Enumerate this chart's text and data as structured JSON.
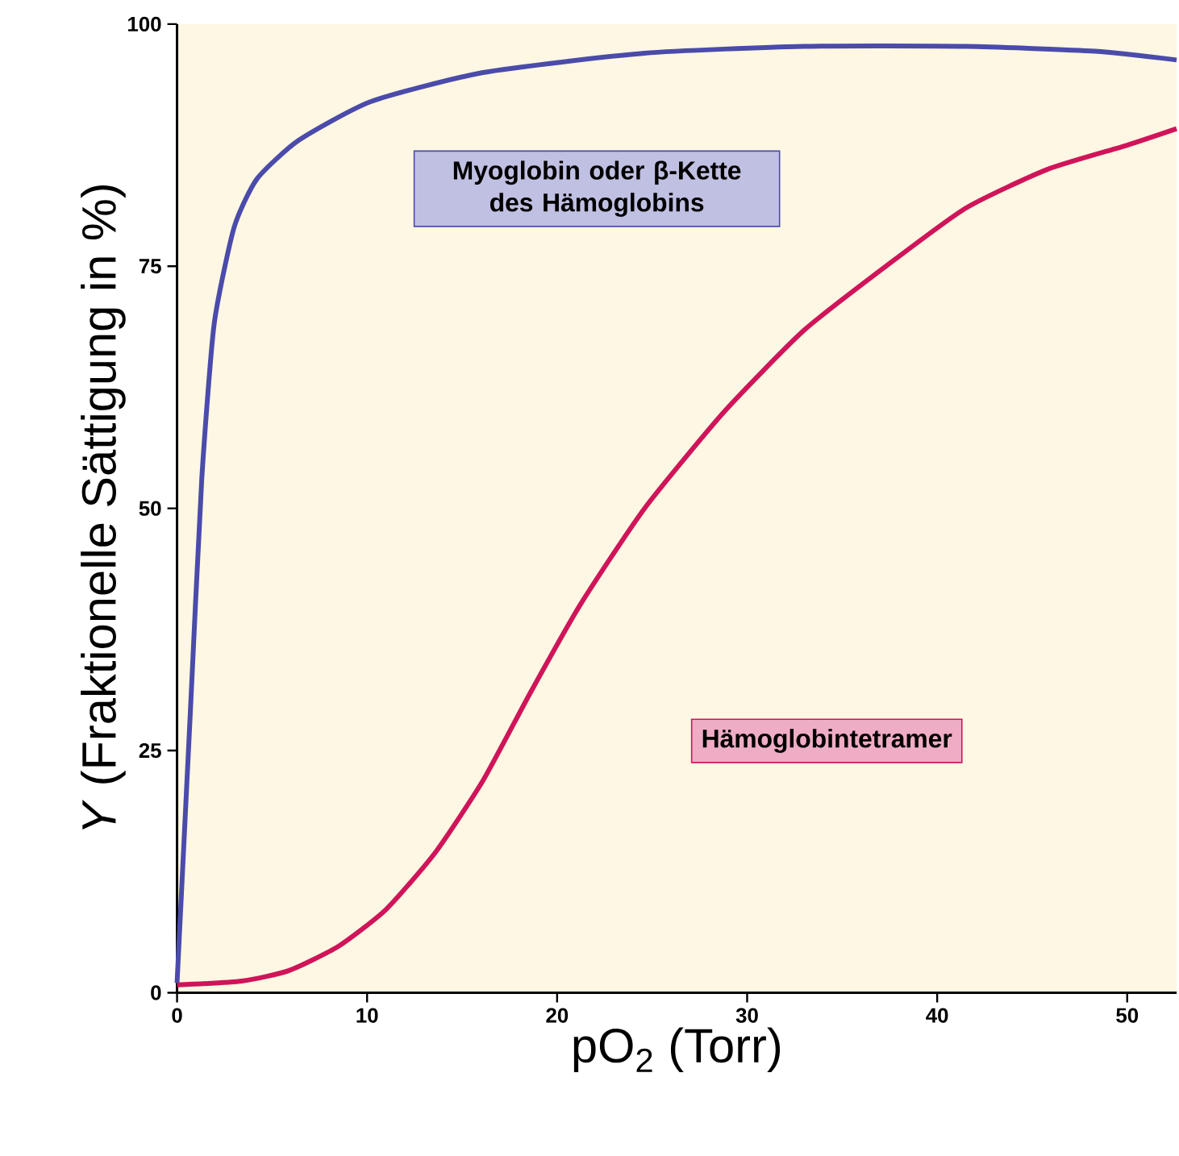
{
  "chart_data": {
    "type": "line",
    "xlabel": "pO$_{2}$ (Torr)",
    "ylabel": "*Y* (Fraktionelle Sättigung in %)",
    "xlim": [
      0,
      52.6
    ],
    "ylim": [
      0,
      100
    ],
    "xticks": [
      0,
      10,
      20,
      30,
      40,
      50
    ],
    "yticks": [
      0,
      25,
      50,
      75,
      100
    ],
    "grid": false,
    "marker": "none",
    "line_style": "solid",
    "series": [
      {
        "color": "#4b4bab",
        "x": [
          0,
          0.7,
          1.3,
          1.95,
          3,
          4.2,
          6.4,
          10.2,
          16.1,
          24.6,
          33,
          41.5,
          48.3,
          52.6
        ],
        "values": [
          1,
          29,
          53,
          69,
          79,
          84,
          88,
          92,
          95,
          97,
          97.7,
          97.7,
          97.2,
          96.3
        ]
      },
      {
        "color": "#d0145a",
        "x": [
          0,
          3.4,
          5.9,
          8.5,
          11,
          13.6,
          16.1,
          18.6,
          21.2,
          24.6,
          28.8,
          33,
          37.3,
          41.5,
          45.8,
          50,
          52.6
        ],
        "values": [
          0.8,
          1.2,
          2.3,
          4.8,
          8.6,
          14.5,
          21.9,
          31,
          40,
          50,
          60,
          68.4,
          75,
          81,
          85,
          87.5,
          89.2
        ]
      }
    ],
    "annotations": [
      "Myoglobin oder β-Kette des Hämoglobins",
      "Hämoglobintetramer"
    ]
  }
}
